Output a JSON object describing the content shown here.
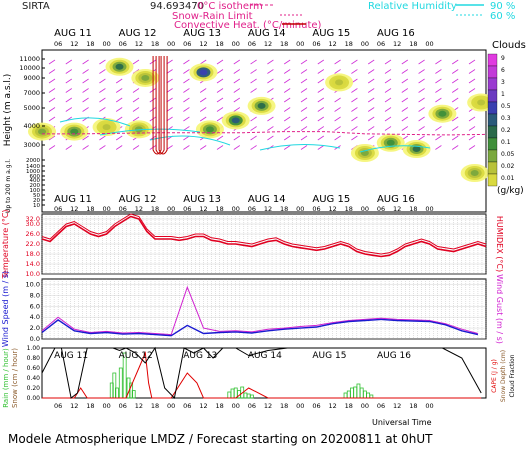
{
  "header": {
    "site": "SIRTA",
    "coord": "94.693470",
    "legend_isotherm": "0°C isotherm",
    "legend_snowrain": "Snow-Rain Limit",
    "legend_convective": "Convective Heat. (°C/minute)",
    "legend_rh": "Relative Humidity",
    "rh_90": "90 %",
    "rh_60": "60 %"
  },
  "time_axis": {
    "days": [
      "AUG 11",
      "AUG 12",
      "AUG 13",
      "AUG 14",
      "AUG 15",
      "AUG 16"
    ],
    "hours": [
      "06",
      "12",
      "18",
      "00"
    ],
    "xlabel": "Universal Time"
  },
  "footer": {
    "title": "Modele Atmospherique LMDZ / Forecast starting on 20200811 at 0hUT"
  },
  "colors": {
    "clouds": [
      "#f5f57a",
      "#d9d93f",
      "#b8c23a",
      "#7aa83d",
      "#3f8f3a",
      "#2a6a4a",
      "#2a5a7a",
      "#3a3fb0",
      "#6a3ac0",
      "#9a3ad0",
      "#c23ad8",
      "#e03ae0"
    ],
    "temperature": "#e00020",
    "humidex": "#e00020",
    "wind_speed": "#1a1ad0",
    "wind_gust": "#d020d0",
    "rain": "#30c030",
    "snow": "#8a5a2a",
    "cape": "#e00000",
    "cloud_fraction": "#000000"
  },
  "chart_data": [
    {
      "type": "heatmap",
      "title": "Clouds",
      "ylabel": "Height (m a.s.l.)",
      "ylabel2": "Up to 200 m a.g.l.",
      "yticks": [
        "11000",
        "10000",
        "9000",
        "7000",
        "5000",
        "4000",
        "3000",
        "2000",
        "1400",
        "1000",
        "600",
        "400",
        "200",
        "100",
        "50",
        "20",
        "10"
      ],
      "scale": [
        "9",
        "6",
        "3",
        "1",
        "0.5",
        "0.3",
        "0.2",
        "0.1",
        "0.05",
        "0.02",
        "0.01"
      ],
      "scale_unit": "(g/kg)",
      "cloud_cells": [
        {
          "t": 0.0,
          "h": 4200,
          "v": 0.1
        },
        {
          "t": 0.5,
          "h": 4200,
          "v": 0.2
        },
        {
          "t": 1.0,
          "h": 4600,
          "v": 0.05
        },
        {
          "t": 1.2,
          "h": 10000,
          "v": 0.3
        },
        {
          "t": 1.5,
          "h": 4400,
          "v": 0.1
        },
        {
          "t": 1.6,
          "h": 9000,
          "v": 0.1
        },
        {
          "t": 2.5,
          "h": 9500,
          "v": 1
        },
        {
          "t": 2.6,
          "h": 4400,
          "v": 0.2
        },
        {
          "t": 3.0,
          "h": 5200,
          "v": 0.5
        },
        {
          "t": 3.4,
          "h": 6500,
          "v": 0.3
        },
        {
          "t": 4.6,
          "h": 8600,
          "v": 0.05
        },
        {
          "t": 5.0,
          "h": 2600,
          "v": 0.1
        },
        {
          "t": 5.4,
          "h": 3200,
          "v": 0.2
        },
        {
          "t": 5.8,
          "h": 2800,
          "v": 0.3
        },
        {
          "t": 6.2,
          "h": 5800,
          "v": 0.2
        },
        {
          "t": 6.7,
          "h": 1600,
          "v": 0.1
        },
        {
          "t": 6.8,
          "h": 6800,
          "v": 0.05
        }
      ],
      "isotherm_m": [
        4000,
        4000,
        4050,
        4100,
        4100,
        4100,
        4200,
        4200,
        4000,
        3950,
        3900,
        3950
      ]
    },
    {
      "type": "line",
      "ylabel": "Temperature (°C)",
      "ylabel2": "HUMIDEX (°C)",
      "yticks": [
        "32.0",
        "30.0",
        "26.0",
        "22.0",
        "18.0",
        "14.0",
        "10.0"
      ],
      "ylim": [
        10,
        34
      ],
      "x_days": [
        0,
        0.125,
        0.25,
        0.375,
        0.5,
        0.625,
        0.75,
        0.875,
        1.0,
        1.125,
        1.25,
        1.375,
        1.5,
        1.625,
        1.75,
        1.875,
        2.0,
        2.125,
        2.25,
        2.375,
        2.5,
        2.625,
        2.75,
        2.875,
        3.0,
        3.125,
        3.25,
        3.375,
        3.5,
        3.625,
        3.75,
        3.875,
        4.0,
        4.125,
        4.25,
        4.375,
        4.5,
        4.625,
        4.75,
        4.875,
        5.0,
        5.125,
        5.25,
        5.375,
        5.5,
        5.625,
        5.75,
        5.875,
        6.0,
        6.125,
        6.25,
        6.375,
        6.5,
        6.625,
        6.75,
        6.875
      ],
      "series": [
        {
          "name": "Temperature",
          "values": [
            24,
            23,
            26,
            29,
            30,
            28,
            26,
            25,
            26,
            29,
            31,
            33,
            32,
            27,
            24,
            24,
            24,
            23.5,
            24,
            25,
            25,
            23.5,
            23,
            22,
            22,
            21.5,
            21,
            22,
            23,
            23.5,
            22,
            21,
            20.5,
            20,
            19.5,
            20,
            21,
            22,
            21,
            19,
            18,
            17.5,
            17,
            17.5,
            19,
            21,
            22,
            23,
            22,
            20,
            19.5,
            19,
            20,
            21,
            22,
            21
          ]
        },
        {
          "name": "HUMIDEX",
          "values": [
            25,
            24,
            27,
            30,
            31,
            29,
            27,
            26,
            27,
            30,
            32,
            34,
            33,
            28,
            25,
            25,
            25,
            24.5,
            25,
            26,
            26,
            24.5,
            24,
            23,
            23,
            22.5,
            22,
            23,
            24,
            24.5,
            23,
            22,
            21.5,
            21,
            20.5,
            21,
            22,
            23,
            22,
            20,
            19,
            18.5,
            18,
            18.5,
            20,
            22,
            23,
            24,
            23,
            21,
            20.5,
            20,
            21,
            22,
            23,
            22
          ]
        }
      ]
    },
    {
      "type": "line",
      "ylabel": "Wind Speed (m / s)",
      "ylabel2": "Wind Gust (m / s)",
      "yticks": [
        "10.0",
        "8.0",
        "6.0",
        "4.0",
        "2.0",
        "0.0"
      ],
      "ylim": [
        0,
        11
      ],
      "x_days": [
        0,
        0.25,
        0.5,
        0.75,
        1.0,
        1.25,
        1.5,
        1.75,
        2.0,
        2.25,
        2.5,
        2.75,
        3.0,
        3.25,
        3.5,
        3.75,
        4.0,
        4.25,
        4.5,
        4.75,
        5.0,
        5.25,
        5.5,
        5.75,
        6.0,
        6.25,
        6.5,
        6.75
      ],
      "series": [
        {
          "name": "Wind Speed",
          "values": [
            1.2,
            3.5,
            1.5,
            1.0,
            1.2,
            0.9,
            1.0,
            0.8,
            0.6,
            2.5,
            1.0,
            1.2,
            1.3,
            1.1,
            1.5,
            1.8,
            2.0,
            2.2,
            2.8,
            3.2,
            3.4,
            3.6,
            3.4,
            3.3,
            3.2,
            2.6,
            1.5,
            0.8
          ]
        },
        {
          "name": "Wind Gust",
          "values": [
            1.5,
            4.0,
            1.8,
            1.2,
            1.4,
            1.1,
            1.2,
            1.0,
            0.8,
            9.5,
            2.0,
            1.4,
            1.5,
            1.3,
            1.8,
            2.0,
            2.3,
            2.5,
            3.0,
            3.4,
            3.6,
            3.8,
            3.6,
            3.5,
            3.4,
            2.8,
            1.8,
            1.0
          ]
        }
      ]
    },
    {
      "type": "bar",
      "ylabel": "Rain (mm / hour)",
      "ylabel2": "Snow (cm / hour)",
      "ylabel3": "CAPE (J / g)",
      "ylabel4": "Snow Depth (cm)",
      "ylabel5": "Cloud Fraction",
      "yticks": [
        "1.00",
        "0.80",
        "0.60",
        "0.40",
        "0.20",
        "0.00"
      ],
      "ylim": [
        0,
        1
      ],
      "series": [
        {
          "name": "Rain",
          "x_days": [
            1.08,
            1.12,
            1.16,
            1.22,
            1.28,
            1.34,
            1.38,
            1.42,
            2.9,
            2.95,
            3.0,
            3.05,
            3.1,
            3.15,
            3.2,
            3.25,
            4.7,
            4.75,
            4.8,
            4.85,
            4.9,
            4.95,
            5.0,
            5.05,
            5.1
          ],
          "values": [
            0.3,
            0.5,
            0.2,
            0.6,
            0.9,
            0.4,
            0.3,
            0.15,
            0.12,
            0.18,
            0.2,
            0.15,
            0.22,
            0.1,
            0.08,
            0.06,
            0.1,
            0.14,
            0.2,
            0.22,
            0.28,
            0.2,
            0.14,
            0.1,
            0.06
          ]
        },
        {
          "name": "Cloud Fraction",
          "x_days": [
            0,
            0.2,
            0.3,
            0.45,
            0.55,
            0.7,
            0.85,
            1.0,
            1.1,
            1.2,
            1.3,
            1.45,
            1.6,
            1.75,
            1.9,
            2.05,
            2.2,
            2.35,
            2.5,
            2.65,
            2.8,
            3.0,
            3.2,
            3.5,
            3.8,
            4.1,
            4.4,
            4.7,
            5.0,
            5.3,
            5.6,
            5.9,
            6.2,
            6.5,
            6.8
          ],
          "values": [
            0.5,
            1.0,
            1.0,
            0.0,
            0.1,
            1.0,
            1.0,
            1.0,
            1.0,
            0.95,
            1.0,
            0.9,
            0.7,
            1.0,
            0.2,
            0.0,
            1.0,
            0.9,
            1.0,
            0.8,
            1.0,
            1.0,
            0.85,
            0.95,
            1.0,
            1.0,
            1.0,
            1.0,
            1.0,
            1.0,
            1.0,
            1.0,
            1.0,
            0.8,
            0.1
          ]
        },
        {
          "name": "CAPE",
          "x_days": [
            0,
            0.5,
            0.6,
            0.7,
            1.0,
            1.3,
            1.5,
            1.6,
            1.65,
            1.7,
            2.0,
            2.25,
            2.4,
            2.5,
            3.0,
            3.2,
            3.5,
            6.8
          ],
          "values": [
            0.0,
            0.0,
            0.2,
            0.0,
            0.0,
            0.0,
            0.6,
            0.9,
            0.3,
            0.0,
            0.0,
            0.5,
            0.3,
            0.0,
            0.0,
            0.2,
            0.0,
            0.0
          ]
        }
      ]
    }
  ]
}
